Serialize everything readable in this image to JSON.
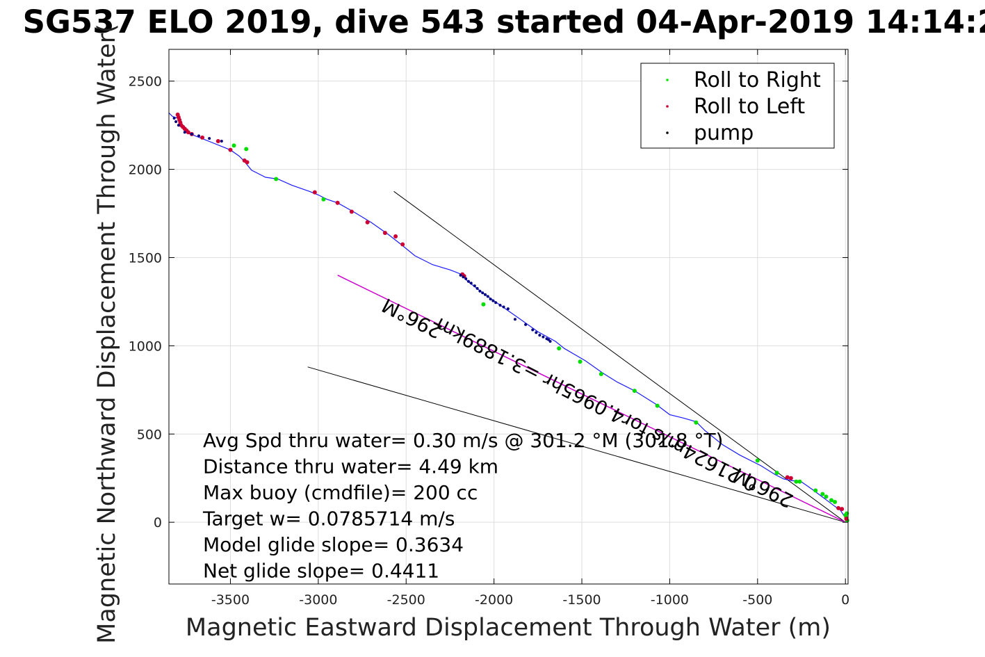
{
  "chart_data": {
    "type": "scatter",
    "title": "SG537 ELO 2019, dive 543 started 04-Apr-2019 14:14:2",
    "xlabel": "Magnetic Eastward Displacement Through Water (m)",
    "ylabel": "Magnetic Northward Displacement Through Water(",
    "xlim": [
      -3850,
      15
    ],
    "ylim": [
      -350,
      2680
    ],
    "xticks": [
      -3500,
      -3000,
      -2500,
      -2000,
      -1500,
      -1000,
      -500,
      0
    ],
    "yticks": [
      0,
      500,
      1000,
      1500,
      2000,
      2500
    ],
    "grid": true,
    "legend_position": "top-right",
    "legend": [
      "Roll to Right",
      "Roll to Left",
      "pump"
    ],
    "colors": {
      "track": "#1a1aff",
      "roll_right": "#00dd00",
      "roll_left": "#cc0033",
      "pump": "#000080",
      "average_line": "#cc00cc",
      "reference_lines": "#000000",
      "grid": "#dddddd"
    },
    "track": {
      "x": [
        -3850,
        -3830,
        -3800,
        -3790,
        -3780,
        -3760,
        -3740,
        -3700,
        -3650,
        -3600,
        -3550,
        -3500,
        -3450,
        -3420,
        -3380,
        -3300,
        -3230,
        -3150,
        -3050,
        -3000,
        -2950,
        -2890,
        -2800,
        -2700,
        -2600,
        -2530,
        -2450,
        -2350,
        -2250,
        -2185,
        -2150,
        -2050,
        -1950,
        -1850,
        -1750,
        -1650,
        -1600,
        -1480,
        -1380,
        -1300,
        -1200,
        -1080,
        -1000,
        -920,
        -850,
        -800,
        -700,
        -600,
        -480,
        -400,
        -350,
        -300,
        -260,
        -230,
        -180,
        -140,
        -100,
        -60,
        -30,
        -10,
        0
      ],
      "y": [
        2320,
        2300,
        2290,
        2265,
        2245,
        2225,
        2205,
        2190,
        2170,
        2150,
        2130,
        2110,
        2075,
        2045,
        1995,
        1955,
        1945,
        1910,
        1875,
        1855,
        1830,
        1810,
        1760,
        1700,
        1630,
        1575,
        1510,
        1460,
        1430,
        1405,
        1365,
        1290,
        1220,
        1150,
        1080,
        1025,
        985,
        915,
        845,
        795,
        745,
        670,
        610,
        590,
        570,
        520,
        440,
        380,
        320,
        270,
        245,
        235,
        235,
        215,
        180,
        150,
        120,
        90,
        70,
        40,
        30
      ]
    },
    "roll_right": {
      "x": [
        -3480,
        -3410,
        -3240,
        -2970,
        -2060,
        -1630,
        -1510,
        -1390,
        -1200,
        -1070,
        -850,
        -500,
        -390,
        -280,
        -260,
        -170,
        -130,
        -110,
        -80,
        -60,
        0,
        5,
        10,
        8
      ],
      "y": [
        2135,
        2115,
        1945,
        1830,
        1235,
        985,
        910,
        840,
        745,
        660,
        565,
        350,
        280,
        230,
        230,
        180,
        160,
        145,
        125,
        115,
        40,
        25,
        10,
        50
      ]
    },
    "roll_left": {
      "x": [
        -3800,
        -3795,
        -3790,
        -3785,
        -3780,
        -3770,
        -3760,
        -3750,
        -3740,
        -3720,
        -3660,
        -3570,
        -3500,
        -3420,
        -3405,
        -3020,
        -2890,
        -2810,
        -2720,
        -2620,
        -2560,
        -2520,
        -2180,
        -2170,
        -330,
        -310,
        -40,
        -20,
        5
      ],
      "y": [
        2310,
        2295,
        2280,
        2265,
        2250,
        2240,
        2230,
        2220,
        2210,
        2200,
        2180,
        2160,
        2110,
        2050,
        2040,
        1870,
        1810,
        1760,
        1700,
        1640,
        1620,
        1575,
        1405,
        1395,
        255,
        250,
        80,
        75,
        20
      ]
    },
    "pump": {
      "x": [
        -3820,
        -3810,
        -3795,
        -3760,
        -3720,
        -3680,
        -3620,
        -3550,
        -2190,
        -2175,
        -2160,
        -2145,
        -2130,
        -2110,
        -2095,
        -2080,
        -2065,
        -2050,
        -2035,
        -2020,
        -2005,
        -1990,
        -1965,
        -1945,
        -1920,
        -1880,
        -1820,
        -1780,
        -1760,
        -1740,
        -1720,
        -1700,
        -1690,
        -1680
      ],
      "y": [
        2290,
        2270,
        2250,
        2210,
        2200,
        2190,
        2175,
        2160,
        1400,
        1390,
        1380,
        1365,
        1355,
        1340,
        1325,
        1310,
        1300,
        1290,
        1280,
        1265,
        1255,
        1245,
        1230,
        1220,
        1210,
        1150,
        1120,
        1090,
        1075,
        1060,
        1050,
        1040,
        1035,
        1025
      ]
    },
    "reference_lines": [
      {
        "x": [
          -2570,
          0
        ],
        "y": [
          1875,
          0
        ],
        "color": "black"
      },
      {
        "x": [
          -3060,
          0
        ],
        "y": [
          880,
          0
        ],
        "color": "black"
      },
      {
        "x": [
          -2890,
          0
        ],
        "y": [
          1400,
          0
        ],
        "color": "magenta"
      }
    ],
    "annotations_lines": [
      "Avg Spd thru water=  0.30 m/s @ 301.2 °M (301.8 °T)",
      "Distance thru water=  4.49 km",
      "Max buoy (cmdfile)= 200 cc",
      "Target w= 0.0785714 m/s",
      "Model glide slope= 0.3634",
      "Net glide slope= 0.4411"
    ],
    "rotated_labels": [
      {
        "text": "296°M",
        "x": -2450,
        "y": 1190
      },
      {
        "text": "296°M",
        "x": -450,
        "y": 230
      },
      {
        "text": "0.21624m/s for4.0965hr =3.1889km",
        "x": -1400,
        "y": 700
      }
    ]
  }
}
